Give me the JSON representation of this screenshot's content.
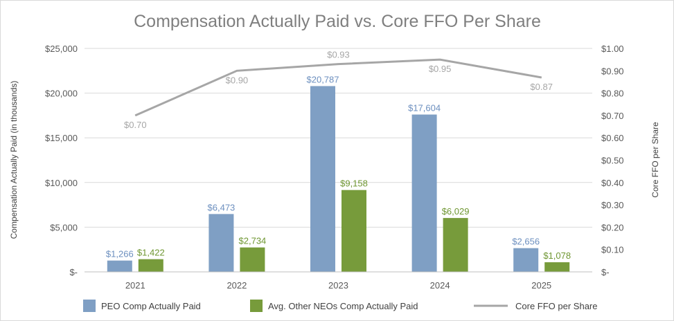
{
  "chart_data": {
    "type": "bar",
    "title": "Compensation Actually Paid vs. Core FFO Per Share",
    "categories": [
      "2021",
      "2022",
      "2023",
      "2024",
      "2025"
    ],
    "ylabel": "Compensation Actually Paid (in thousands)",
    "y2label": "Core FFO per Share",
    "ylim": [
      0,
      25000
    ],
    "y2lim": [
      0,
      1.0
    ],
    "yticks": [
      "$-",
      "$5,000",
      "$10,000",
      "$15,000",
      "$20,000",
      "$25,000"
    ],
    "y2ticks": [
      "$-",
      "$0.10",
      "$0.20",
      "$0.30",
      "$0.40",
      "$0.50",
      "$0.60",
      "$0.70",
      "$0.80",
      "$0.90",
      "$1.00"
    ],
    "grid": true,
    "legend_position": "bottom",
    "series": [
      {
        "name": "PEO Comp Actually Paid",
        "type": "bar",
        "axis": "left",
        "color": "#7f9fc4",
        "label_color": "#6c8fbf",
        "values": [
          1266,
          6473,
          20787,
          17604,
          2656
        ],
        "labels": [
          "$1,266",
          "$6,473",
          "$20,787",
          "$17,604",
          "$2,656"
        ]
      },
      {
        "name": "Avg. Other NEOs Comp Actually Paid",
        "type": "bar",
        "axis": "left",
        "color": "#779b3b",
        "label_color": "#6e9631",
        "values": [
          1422,
          2734,
          9158,
          6029,
          1078
        ],
        "labels": [
          "$1,422",
          "$2,734",
          "$9,158",
          "$6,029",
          "$1,078"
        ]
      },
      {
        "name": "Core FFO per Share",
        "type": "line",
        "axis": "right",
        "color": "#a6a6a6",
        "label_color": "#a6a6a6",
        "values": [
          0.7,
          0.9,
          0.93,
          0.95,
          0.87
        ],
        "labels": [
          "$0.70",
          "$0.90",
          "$0.93",
          "$0.95",
          "$0.87"
        ]
      }
    ]
  }
}
